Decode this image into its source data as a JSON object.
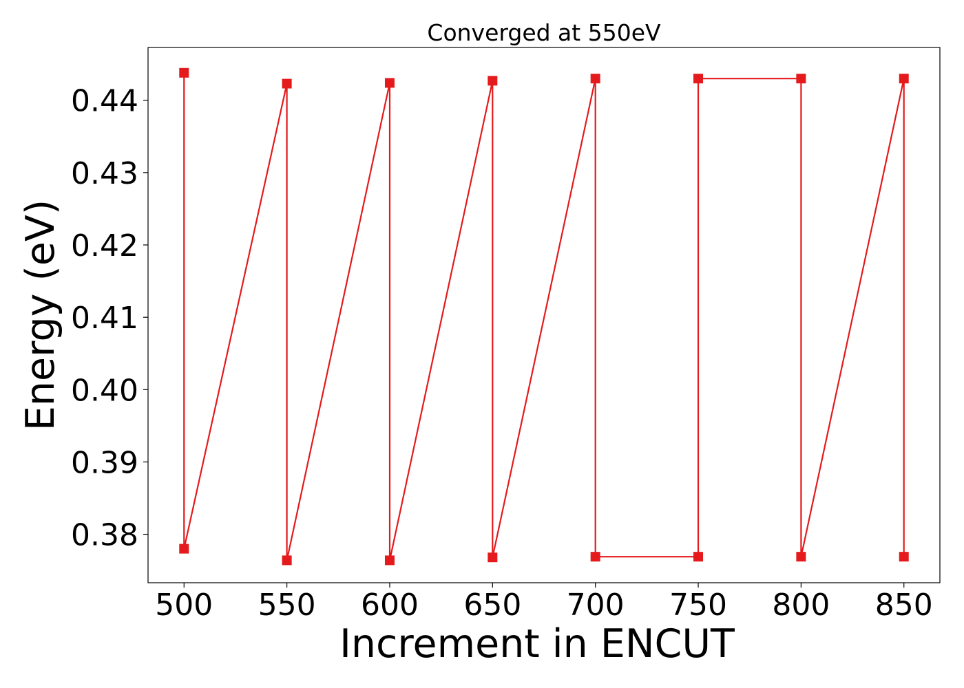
{
  "chart_data": {
    "type": "line",
    "title": "Converged at 550eV",
    "xlabel": "Increment in ENCUT",
    "ylabel": "Energy (eV)",
    "xlim": [
      482.5,
      867.5
    ],
    "ylim": [
      0.3733,
      0.4473
    ],
    "xticks": [
      500,
      550,
      600,
      650,
      700,
      750,
      800,
      850
    ],
    "xtick_labels": [
      "500",
      "550",
      "600",
      "650",
      "700",
      "750",
      "800",
      "850"
    ],
    "yticks": [
      0.38,
      0.39,
      0.4,
      0.41,
      0.42,
      0.43,
      0.44
    ],
    "ytick_labels": [
      "0.38",
      "0.39",
      "0.40",
      "0.41",
      "0.42",
      "0.43",
      "0.44"
    ],
    "grid": false,
    "color": "#e41a1c",
    "marker": "square",
    "series": [
      {
        "x": [
          500,
          500,
          550,
          550,
          600,
          600,
          650,
          650,
          700,
          700,
          750,
          750,
          800,
          800,
          850,
          850
        ],
        "y": [
          0.4438,
          0.378,
          0.4423,
          0.3764,
          0.4424,
          0.3764,
          0.4427,
          0.3768,
          0.443,
          0.3769,
          0.3769,
          0.443,
          0.443,
          0.3769,
          0.443,
          0.3769
        ]
      }
    ]
  }
}
